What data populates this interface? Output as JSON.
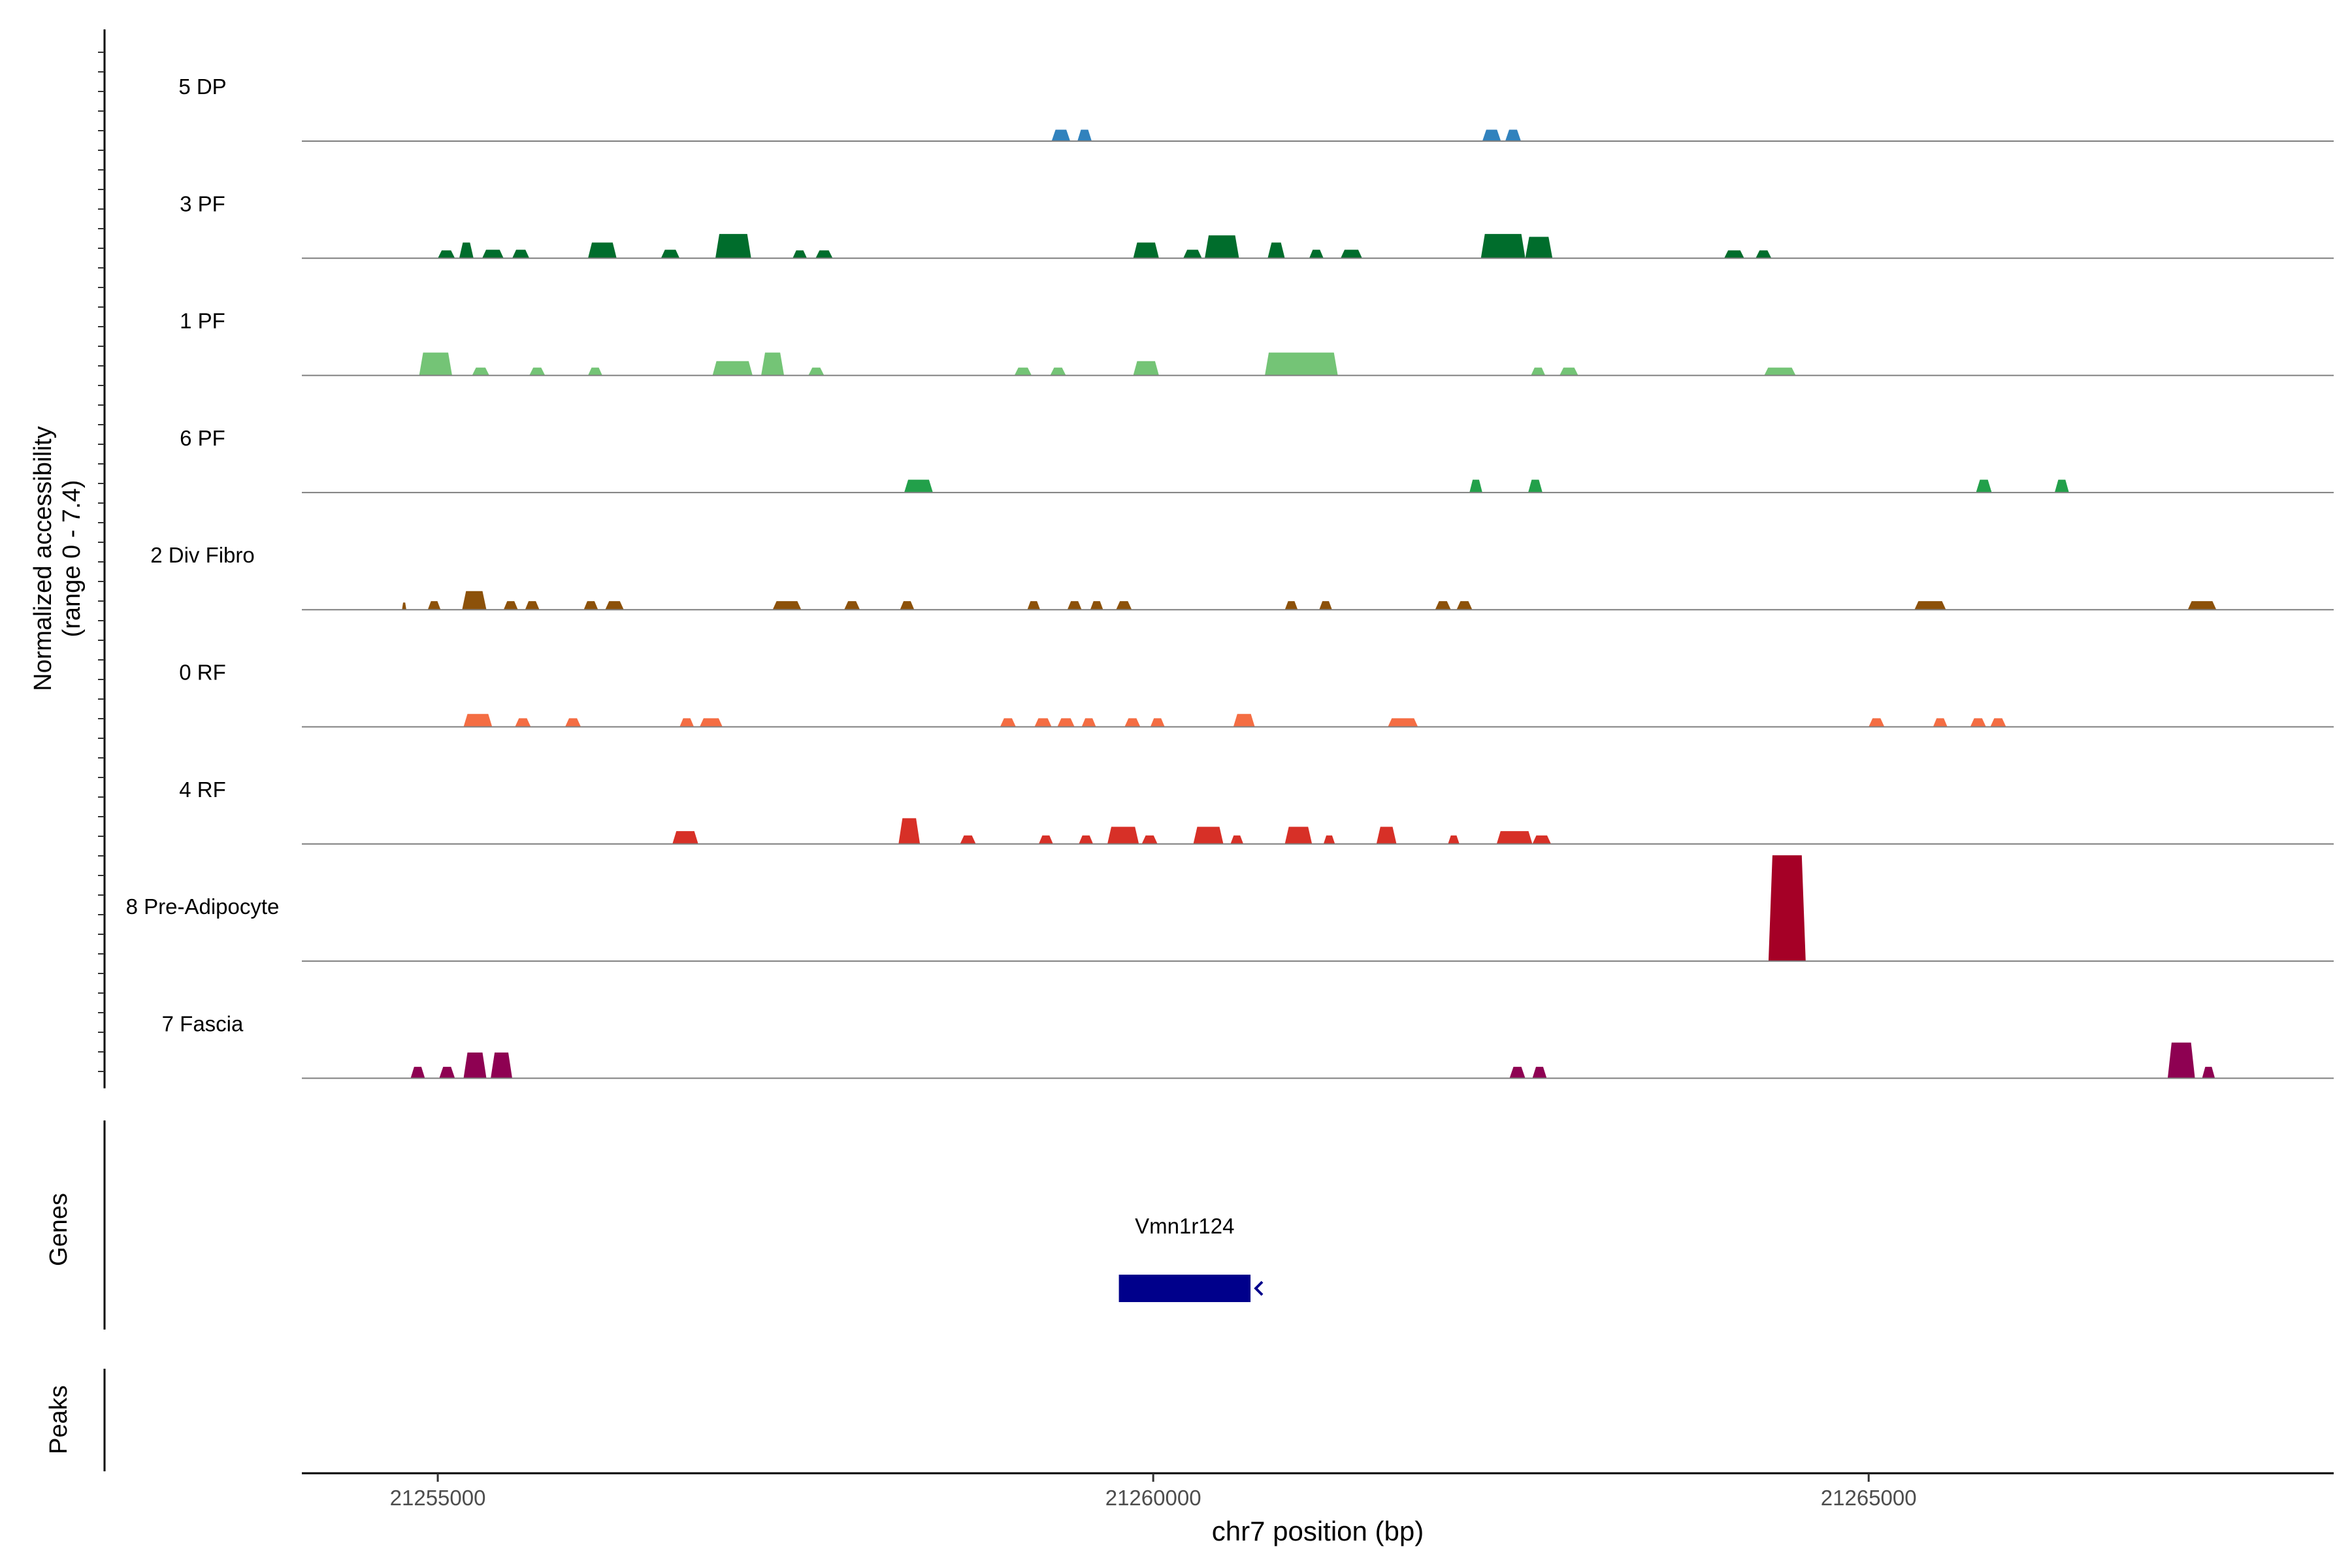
{
  "chart_data": {
    "type": "area",
    "subtype": "coverage-track-plot",
    "y_axis_label_lines": [
      "Normalized accessibility",
      "(range 0 - 7.4)"
    ],
    "y_range": [
      0,
      7.4
    ],
    "xlabel": "chr7 position (bp)",
    "xlim": [
      21254050,
      21268250
    ],
    "x_ticks": [
      21255000,
      21260000,
      21265000
    ],
    "x_tick_labels": [
      "21255000",
      "21260000",
      "21265000"
    ],
    "track_colors": {
      "5 DP": "#3182BD",
      "3 PF": "#006D2C",
      "1 PF": "#74C476",
      "6 PF": "#22A04A",
      "2 Div Fibro": "#8C510A",
      "0 RF": "#F46D43",
      "4 RF": "#D73027",
      "8 Pre-Adipocyte": "#A50026",
      "7 Fascia": "#8E0152"
    },
    "series": [
      {
        "name": "5 DP",
        "color": "#3182BD",
        "peaks": [
          [
            21259290,
            21259420,
            0.8
          ],
          [
            21259470,
            21259570,
            0.8
          ],
          [
            21262300,
            21262430,
            0.8
          ],
          [
            21262460,
            21262570,
            0.8
          ]
        ]
      },
      {
        "name": "3 PF",
        "color": "#006D2C",
        "peaks": [
          [
            21255000,
            21255120,
            0.55
          ],
          [
            21255150,
            21255250,
            1.1
          ],
          [
            21255310,
            21255460,
            0.6
          ],
          [
            21255520,
            21255640,
            0.6
          ],
          [
            21256050,
            21256250,
            1.1
          ],
          [
            21256560,
            21256690,
            0.6
          ],
          [
            21256940,
            21257190,
            1.7
          ],
          [
            21257480,
            21257580,
            0.55
          ],
          [
            21257640,
            21257760,
            0.55
          ],
          [
            21259860,
            21260040,
            1.1
          ],
          [
            21260210,
            21260340,
            0.6
          ],
          [
            21260360,
            21260600,
            1.6
          ],
          [
            21260800,
            21260920,
            1.1
          ],
          [
            21261090,
            21261190,
            0.6
          ],
          [
            21261310,
            21261460,
            0.6
          ],
          [
            21262290,
            21262600,
            1.7
          ],
          [
            21262600,
            21262790,
            1.5
          ],
          [
            21263990,
            21264130,
            0.55
          ],
          [
            21264210,
            21264320,
            0.55
          ]
        ]
      },
      {
        "name": "1 PF",
        "color": "#74C476",
        "peaks": [
          [
            21254870,
            21255100,
            1.6
          ],
          [
            21255240,
            21255360,
            0.55
          ],
          [
            21255640,
            21255750,
            0.55
          ],
          [
            21256050,
            21256150,
            0.55
          ],
          [
            21256920,
            21257200,
            1.0
          ],
          [
            21257260,
            21257420,
            1.6
          ],
          [
            21257590,
            21257700,
            0.55
          ],
          [
            21259030,
            21259150,
            0.55
          ],
          [
            21259280,
            21259390,
            0.55
          ],
          [
            21259860,
            21260040,
            1.0
          ],
          [
            21260780,
            21261290,
            1.6
          ],
          [
            21262640,
            21262740,
            0.55
          ],
          [
            21262840,
            21262970,
            0.55
          ],
          [
            21264270,
            21264490,
            0.55
          ]
        ]
      },
      {
        "name": "6 PF",
        "color": "#22A04A",
        "peaks": [
          [
            21258260,
            21258460,
            0.9
          ],
          [
            21262210,
            21262300,
            0.9
          ],
          [
            21262620,
            21262720,
            0.9
          ],
          [
            21265750,
            21265860,
            0.9
          ],
          [
            21266300,
            21266400,
            0.9
          ]
        ]
      },
      {
        "name": "2 Div Fibro",
        "color": "#8C510A",
        "peaks": [
          [
            21254750,
            21254780,
            0.5
          ],
          [
            21254930,
            21255020,
            0.6
          ],
          [
            21255170,
            21255340,
            1.3
          ],
          [
            21255460,
            21255560,
            0.6
          ],
          [
            21255610,
            21255710,
            0.6
          ],
          [
            21256020,
            21256120,
            0.6
          ],
          [
            21256170,
            21256300,
            0.6
          ],
          [
            21257340,
            21257540,
            0.6
          ],
          [
            21257840,
            21257950,
            0.6
          ],
          [
            21258230,
            21258330,
            0.6
          ],
          [
            21259120,
            21259210,
            0.6
          ],
          [
            21259400,
            21259500,
            0.6
          ],
          [
            21259560,
            21259650,
            0.6
          ],
          [
            21259740,
            21259850,
            0.6
          ],
          [
            21260920,
            21261010,
            0.6
          ],
          [
            21261160,
            21261250,
            0.6
          ],
          [
            21261970,
            21262080,
            0.6
          ],
          [
            21262120,
            21262230,
            0.6
          ],
          [
            21265320,
            21265540,
            0.6
          ],
          [
            21267230,
            21267430,
            0.6
          ]
        ]
      },
      {
        "name": "0 RF",
        "color": "#F46D43",
        "peaks": [
          [
            21255180,
            21255380,
            0.9
          ],
          [
            21255540,
            21255650,
            0.6
          ],
          [
            21255890,
            21256000,
            0.6
          ],
          [
            21256690,
            21256790,
            0.6
          ],
          [
            21256830,
            21256990,
            0.6
          ],
          [
            21258930,
            21259040,
            0.6
          ],
          [
            21259170,
            21259290,
            0.6
          ],
          [
            21259330,
            21259450,
            0.6
          ],
          [
            21259500,
            21259600,
            0.6
          ],
          [
            21259800,
            21259910,
            0.6
          ],
          [
            21259980,
            21260080,
            0.6
          ],
          [
            21260560,
            21260710,
            0.9
          ],
          [
            21261640,
            21261850,
            0.6
          ],
          [
            21265000,
            21265110,
            0.6
          ],
          [
            21265450,
            21265550,
            0.6
          ],
          [
            21265710,
            21265820,
            0.6
          ],
          [
            21265850,
            21265960,
            0.6
          ]
        ]
      },
      {
        "name": "4 RF",
        "color": "#D73027",
        "peaks": [
          [
            21256640,
            21256820,
            0.9
          ],
          [
            21258220,
            21258370,
            1.8
          ],
          [
            21258650,
            21258760,
            0.6
          ],
          [
            21259200,
            21259300,
            0.6
          ],
          [
            21259480,
            21259580,
            0.6
          ],
          [
            21259680,
            21259900,
            1.2
          ],
          [
            21259920,
            21260030,
            0.6
          ],
          [
            21260280,
            21260490,
            1.2
          ],
          [
            21260540,
            21260630,
            0.6
          ],
          [
            21260920,
            21261110,
            1.2
          ],
          [
            21261190,
            21261270,
            0.6
          ],
          [
            21261560,
            21261700,
            1.2
          ],
          [
            21262060,
            21262140,
            0.6
          ],
          [
            21262400,
            21262650,
            0.9
          ],
          [
            21262650,
            21262780,
            0.6
          ]
        ]
      },
      {
        "name": "8 Pre-Adipocyte",
        "color": "#A50026",
        "peaks": [
          [
            21264300,
            21264560,
            7.4
          ]
        ]
      },
      {
        "name": "7 Fascia",
        "color": "#8E0152",
        "peaks": [
          [
            21254810,
            21254910,
            0.8
          ],
          [
            21255010,
            21255120,
            0.8
          ],
          [
            21255180,
            21255340,
            1.8
          ],
          [
            21255370,
            21255520,
            1.8
          ],
          [
            21262490,
            21262600,
            0.8
          ],
          [
            21262650,
            21262750,
            0.8
          ],
          [
            21267090,
            21267280,
            2.5
          ],
          [
            21267330,
            21267420,
            0.8
          ]
        ]
      }
    ],
    "genes": [
      {
        "name": "Vmn1r124",
        "start": 21259760,
        "end": 21260680,
        "strand": "-",
        "color": "#00008B"
      }
    ],
    "panels": {
      "genes_label": "Genes",
      "peaks_label": "Peaks"
    },
    "grid": false,
    "legend": "none"
  }
}
